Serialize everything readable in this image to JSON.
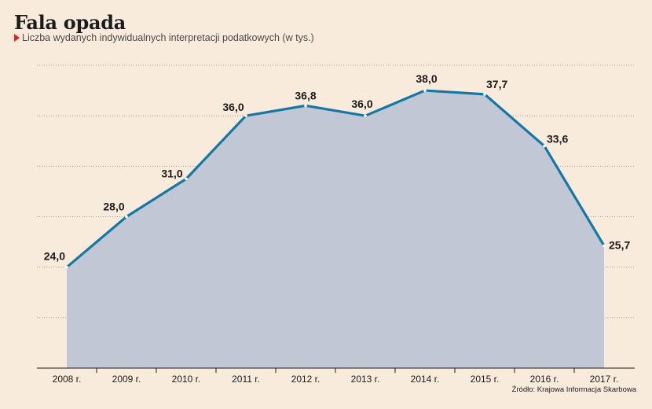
{
  "header": {
    "title": "Fala opada",
    "subtitle": "Liczba wydanych indywidualnych interpretacji podatkowych (w tys.)"
  },
  "source": "Źródło: Krajowa Informacja Skarbowa",
  "colors": {
    "background": "#f9ebdc",
    "area_fill": "#c2c7d6",
    "line": "#1478a5",
    "grid": "#8a8a8a",
    "marker": "#e2231a"
  },
  "chart_data": {
    "type": "area",
    "categories": [
      "2008 r.",
      "2009 r.",
      "2010 r.",
      "2011 r.",
      "2012 r.",
      "2013 r.",
      "2014 r.",
      "2015 r.",
      "2016 r.",
      "2017 r."
    ],
    "values": [
      24.0,
      28.0,
      31.0,
      36.0,
      36.8,
      36.0,
      38.0,
      37.7,
      33.6,
      25.7
    ],
    "value_labels": [
      "24,0",
      "28,0",
      "31,0",
      "36,0",
      "36,8",
      "36,0",
      "38,0",
      "37,7",
      "33,6",
      "25,7"
    ],
    "title": "Fala opada",
    "subtitle": "Liczba wydanych indywidualnych interpretacji podatkowych (w tys.)",
    "ylim": [
      16,
      40
    ],
    "yticks": [
      20,
      24,
      28,
      32,
      36,
      40
    ],
    "grid": true,
    "grid_style": "dotted horizontal",
    "legend": "none"
  }
}
